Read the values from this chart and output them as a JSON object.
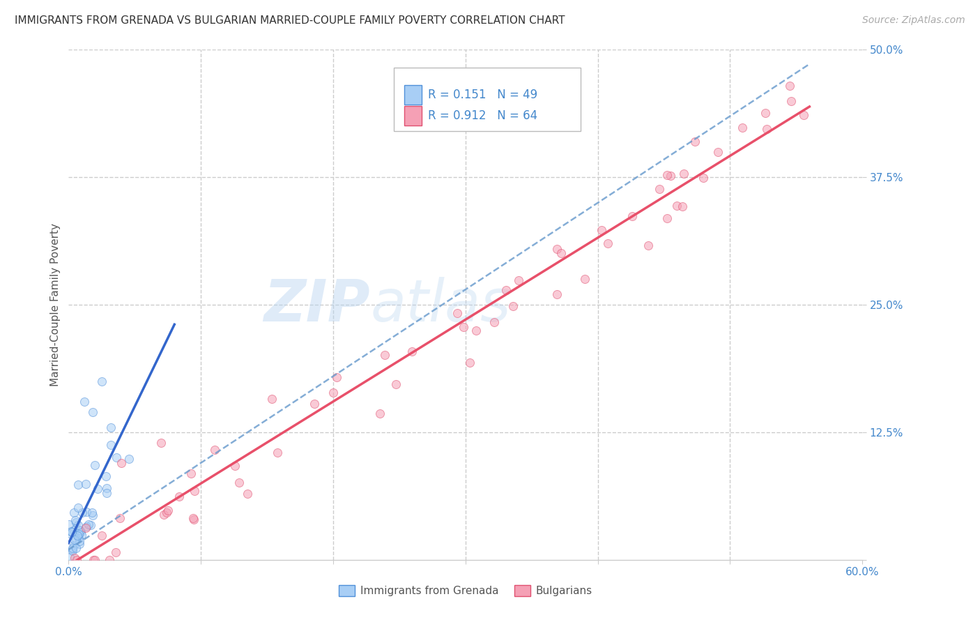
{
  "title": "IMMIGRANTS FROM GRENADA VS BULGARIAN MARRIED-COUPLE FAMILY POVERTY CORRELATION CHART",
  "source": "Source: ZipAtlas.com",
  "xlabel": "",
  "ylabel": "Married-Couple Family Poverty",
  "series1_label": "Immigrants from Grenada",
  "series2_label": "Bulgarians",
  "series1_color": "#a8cef5",
  "series2_color": "#f5a0b5",
  "series1_edge": "#5090d9",
  "series2_edge": "#e05070",
  "R1": 0.151,
  "N1": 49,
  "R2": 0.912,
  "N2": 64,
  "xlim": [
    0.0,
    0.6
  ],
  "ylim": [
    0.0,
    0.5
  ],
  "xticks": [
    0.0,
    0.1,
    0.2,
    0.3,
    0.4,
    0.5,
    0.6
  ],
  "xticklabels": [
    "0.0%",
    "",
    "",
    "",
    "",
    "",
    "60.0%"
  ],
  "yticks": [
    0.0,
    0.125,
    0.25,
    0.375,
    0.5
  ],
  "yticklabels": [
    "",
    "12.5%",
    "25.0%",
    "37.5%",
    "50.0%"
  ],
  "watermark_zip": "ZIP",
  "watermark_atlas": "atlas",
  "background_color": "#ffffff",
  "grid_color": "#cccccc",
  "trend_color_1": "#3366cc",
  "trend_color_2": "#e8506a",
  "trend_dash_color": "#6699cc",
  "title_color": "#333333",
  "axis_label_color": "#555555",
  "tick_label_color": "#4488cc",
  "seed": 7,
  "marker_size": 75,
  "marker_alpha": 0.55
}
